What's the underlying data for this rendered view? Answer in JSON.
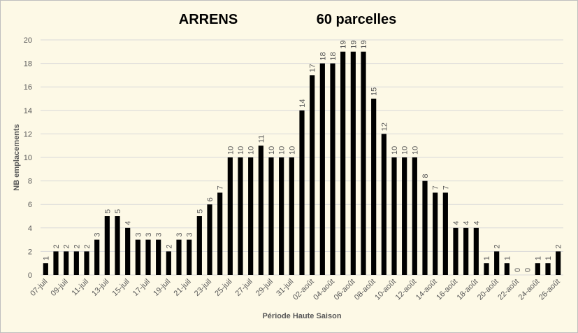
{
  "chart_data": {
    "type": "bar",
    "title": "ARRENS",
    "subtitle": "60 parcelles",
    "x_label": "Période Haute Saison",
    "y_label": "NB emplacements",
    "categories": [
      "07-juil",
      null,
      "09-juil",
      null,
      "11-juil",
      null,
      "13-juil",
      null,
      "15-juil",
      null,
      "17-juil",
      null,
      "19-juil",
      null,
      "21-juil",
      null,
      "23-juil",
      null,
      "25-juil",
      null,
      "27-juil",
      null,
      "29-juil",
      null,
      "31-juil",
      null,
      "02-août",
      null,
      "04-août",
      null,
      "06-août",
      null,
      "08-août",
      null,
      "10-août",
      null,
      "12-août",
      null,
      "14-août",
      null,
      "16-août",
      null,
      "18-août",
      null,
      "20-août",
      null,
      "22-août",
      null,
      "24-août",
      null,
      "26-août"
    ],
    "values": [
      1,
      2,
      2,
      2,
      2,
      3,
      5,
      5,
      4,
      3,
      3,
      3,
      2,
      3,
      3,
      5,
      6,
      7,
      10,
      10,
      10,
      11,
      10,
      10,
      10,
      14,
      17,
      18,
      18,
      19,
      19,
      19,
      15,
      12,
      10,
      10,
      10,
      8,
      7,
      7,
      4,
      4,
      4,
      1,
      2,
      1,
      0,
      0,
      1,
      1,
      2
    ],
    "color": "#000000",
    "ylim": [
      0,
      20
    ],
    "yticks": [
      0,
      2,
      4,
      6,
      8,
      10,
      12,
      14,
      16,
      18,
      20
    ],
    "grid": true
  }
}
